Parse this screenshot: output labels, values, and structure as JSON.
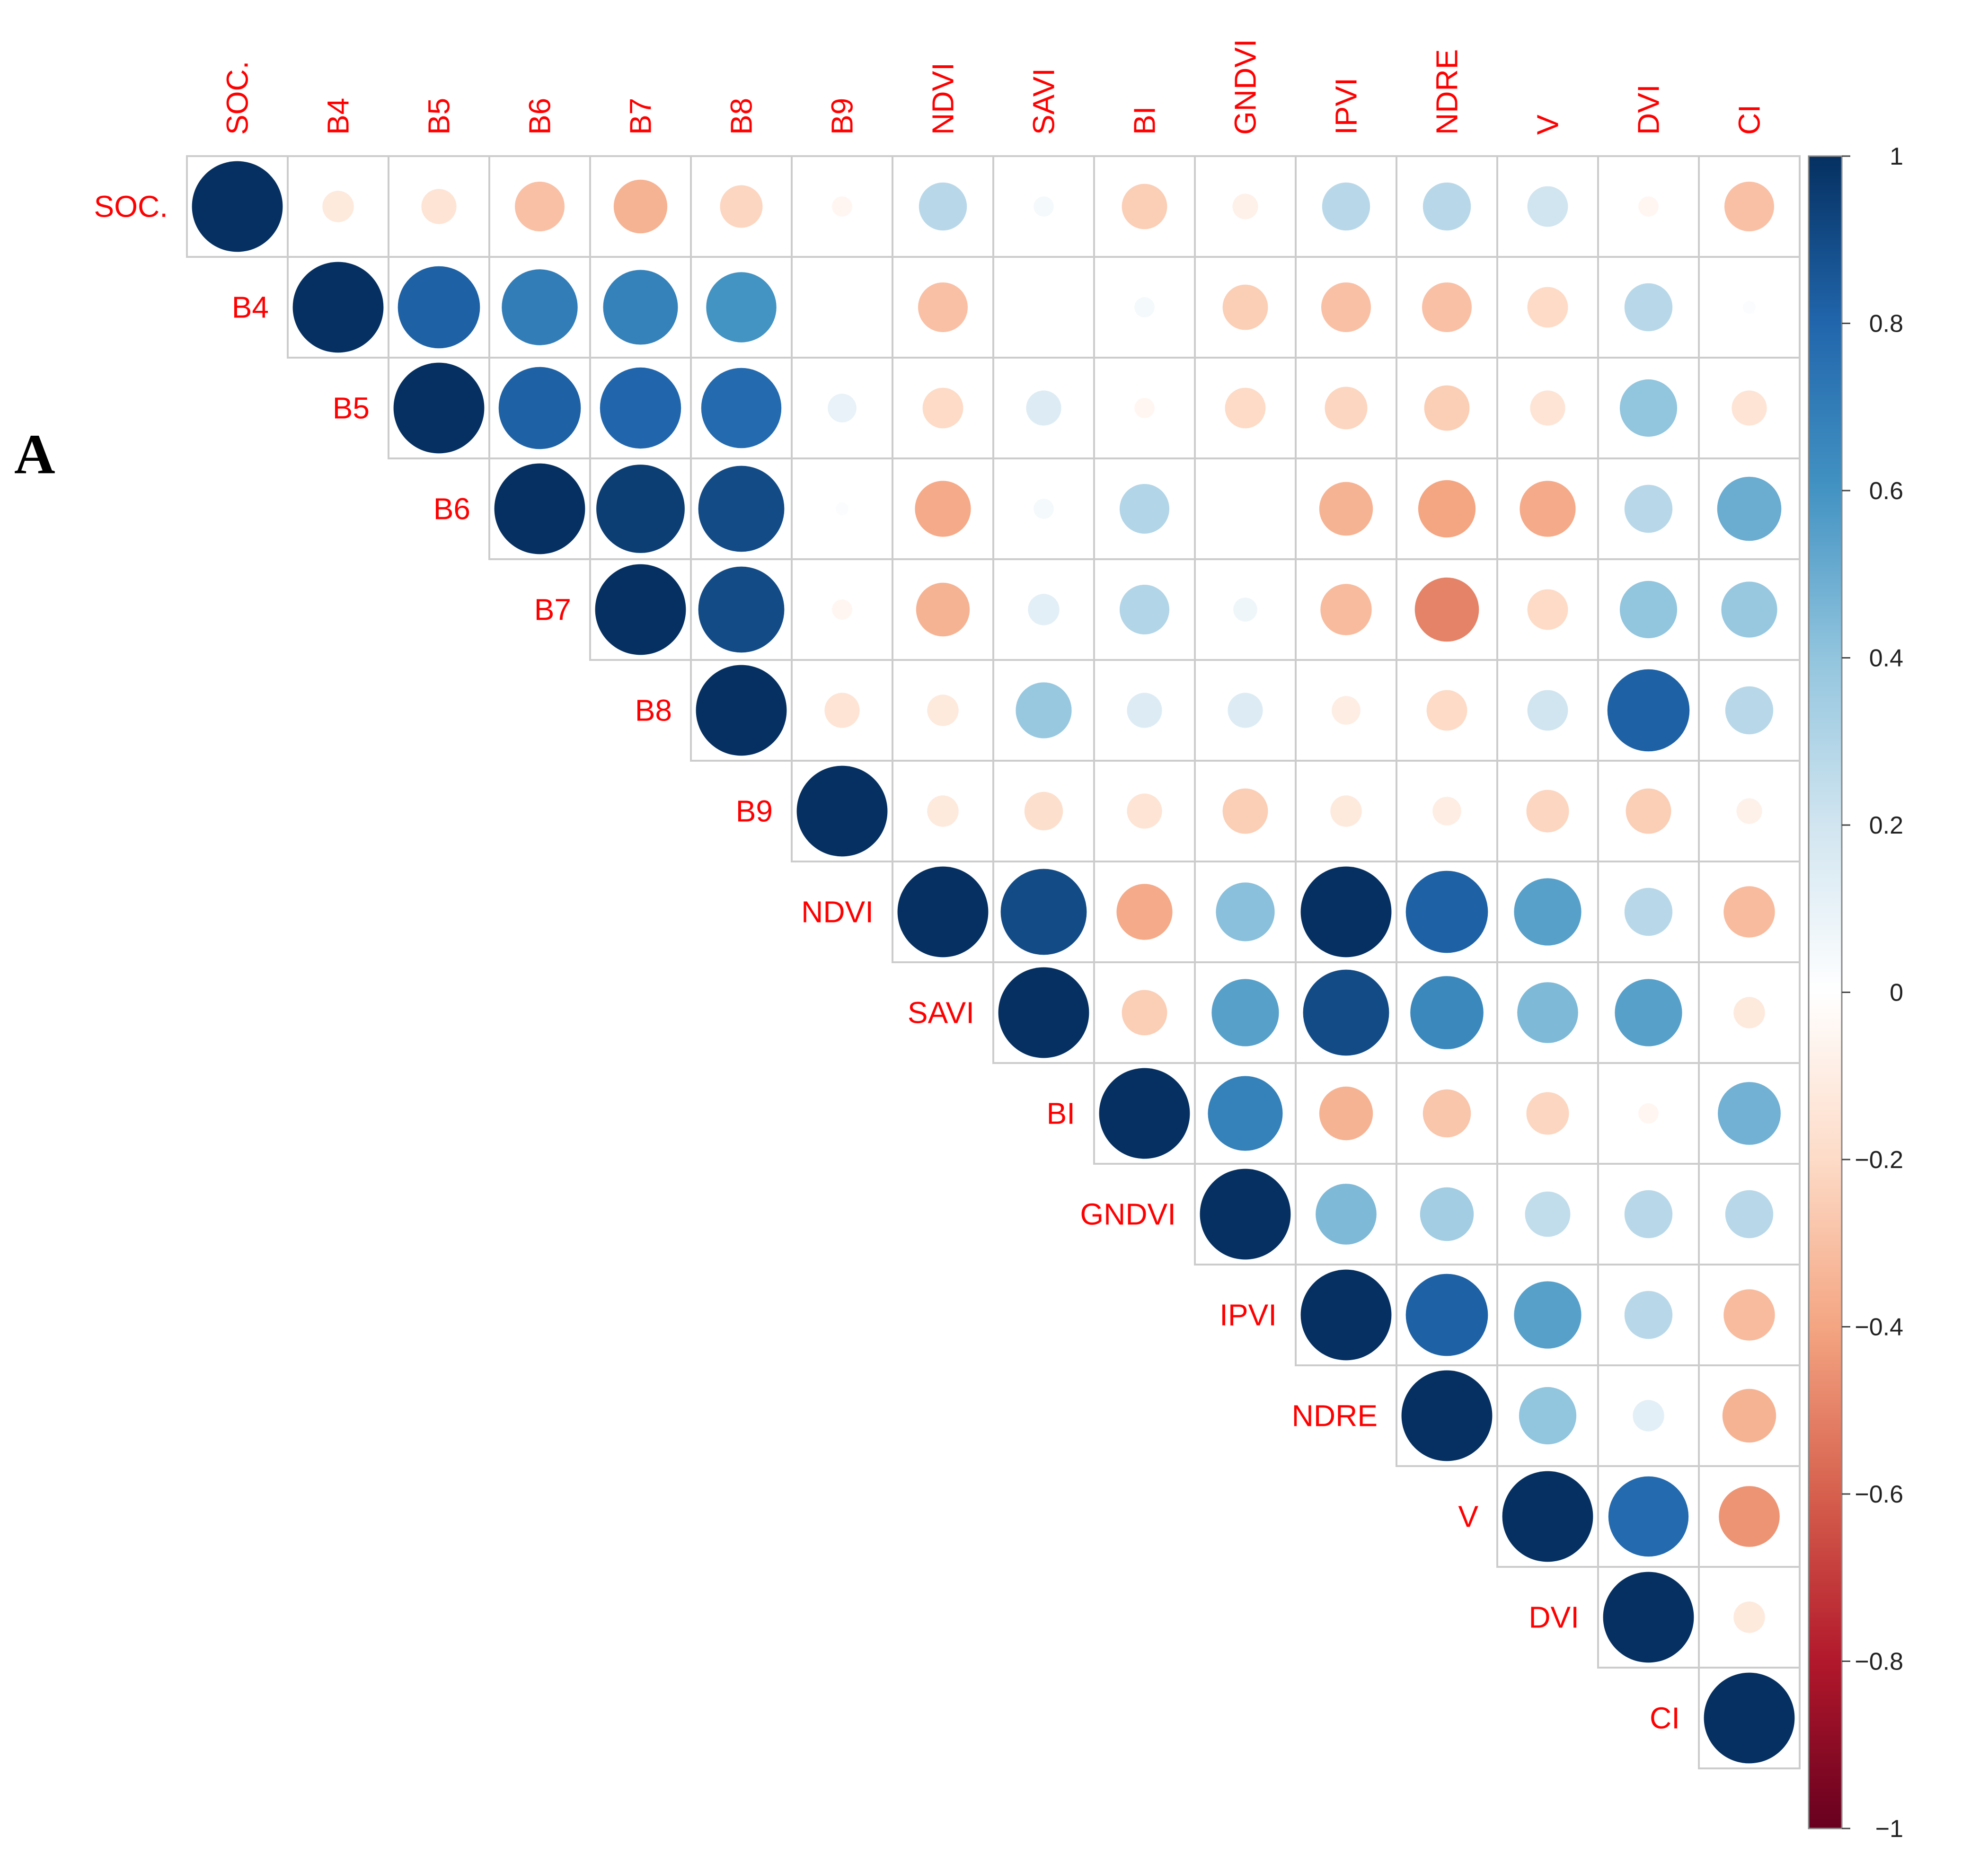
{
  "panel_label": "A",
  "chart_data": {
    "type": "heatmap",
    "style": "correlation circles, upper triangle",
    "variables": [
      "SOC.",
      "B4",
      "B5",
      "B6",
      "B7",
      "B8",
      "B9",
      "NDVI",
      "SAVI",
      "BI",
      "GNDVI",
      "IPVI",
      "NDRE",
      "V",
      "DVI",
      "CI"
    ],
    "matrix": [
      [
        1,
        -0.12,
        -0.15,
        -0.3,
        -0.35,
        -0.22,
        -0.05,
        0.28,
        0.05,
        -0.25,
        -0.08,
        0.28,
        0.28,
        0.2,
        -0.05,
        -0.3
      ],
      [
        null,
        1,
        0.82,
        0.7,
        0.68,
        0.6,
        0.0,
        -0.3,
        0.0,
        0.05,
        -0.25,
        -0.3,
        -0.3,
        -0.2,
        0.28,
        0.02
      ],
      [
        null,
        null,
        1,
        0.82,
        0.8,
        0.78,
        0.1,
        -0.2,
        0.15,
        -0.05,
        -0.2,
        -0.22,
        -0.25,
        -0.15,
        0.4,
        -0.15
      ],
      [
        null,
        null,
        null,
        1,
        0.95,
        0.9,
        0.02,
        -0.38,
        0.05,
        0.3,
        0.0,
        -0.35,
        -0.4,
        -0.38,
        0.28,
        0.5
      ],
      [
        null,
        null,
        null,
        null,
        1,
        0.9,
        -0.05,
        -0.35,
        0.12,
        0.3,
        0.07,
        -0.32,
        -0.5,
        -0.2,
        0.4,
        0.38
      ],
      [
        null,
        null,
        null,
        null,
        null,
        1,
        -0.15,
        -0.12,
        0.38,
        0.15,
        0.15,
        -0.1,
        -0.2,
        0.2,
        0.82,
        0.28
      ],
      [
        null,
        null,
        null,
        null,
        null,
        null,
        1,
        -0.12,
        -0.18,
        -0.15,
        -0.25,
        -0.12,
        -0.1,
        -0.22,
        -0.25,
        -0.08
      ],
      [
        null,
        null,
        null,
        null,
        null,
        null,
        null,
        1,
        0.9,
        -0.38,
        0.42,
        1,
        0.82,
        0.55,
        0.28,
        -0.32
      ],
      [
        null,
        null,
        null,
        null,
        null,
        null,
        null,
        null,
        1,
        -0.25,
        0.55,
        0.9,
        0.65,
        0.45,
        0.55,
        -0.12
      ],
      [
        null,
        null,
        null,
        null,
        null,
        null,
        null,
        null,
        null,
        1,
        0.68,
        -0.35,
        -0.28,
        -0.22,
        -0.05,
        0.48
      ],
      [
        null,
        null,
        null,
        null,
        null,
        null,
        null,
        null,
        null,
        null,
        1,
        0.45,
        0.35,
        0.25,
        0.28,
        0.28
      ],
      [
        null,
        null,
        null,
        null,
        null,
        null,
        null,
        null,
        null,
        null,
        null,
        1,
        0.82,
        0.55,
        0.28,
        -0.32
      ],
      [
        null,
        null,
        null,
        null,
        null,
        null,
        null,
        null,
        null,
        null,
        null,
        null,
        1,
        0.4,
        0.12,
        -0.35
      ],
      [
        null,
        null,
        null,
        null,
        null,
        null,
        null,
        null,
        null,
        null,
        null,
        null,
        null,
        1,
        0.78,
        -0.45
      ],
      [
        null,
        null,
        null,
        null,
        null,
        null,
        null,
        null,
        null,
        null,
        null,
        null,
        null,
        null,
        1,
        -0.12
      ],
      [
        null,
        null,
        null,
        null,
        null,
        null,
        null,
        null,
        null,
        null,
        null,
        null,
        null,
        null,
        null,
        1
      ]
    ],
    "colorbar": {
      "range": [
        -1,
        1
      ],
      "ticks": [
        1,
        0.8,
        0.6,
        0.4,
        0.2,
        0,
        -0.2,
        -0.4,
        -0.6,
        -0.8,
        -1
      ],
      "tick_labels": [
        "1",
        "0.8",
        "0.6",
        "0.4",
        "0.2",
        "0",
        "−0.2",
        "−0.4",
        "−0.6",
        "−0.8",
        "−1"
      ],
      "color_stops": [
        "#67001f",
        "#b2182b",
        "#d6604d",
        "#f4a582",
        "#fddbc7",
        "#ffffff",
        "#d1e5f0",
        "#92c5de",
        "#4393c3",
        "#2166ac",
        "#053061"
      ]
    },
    "label_color": "#ff0000",
    "grid_color": "#cccccc"
  }
}
